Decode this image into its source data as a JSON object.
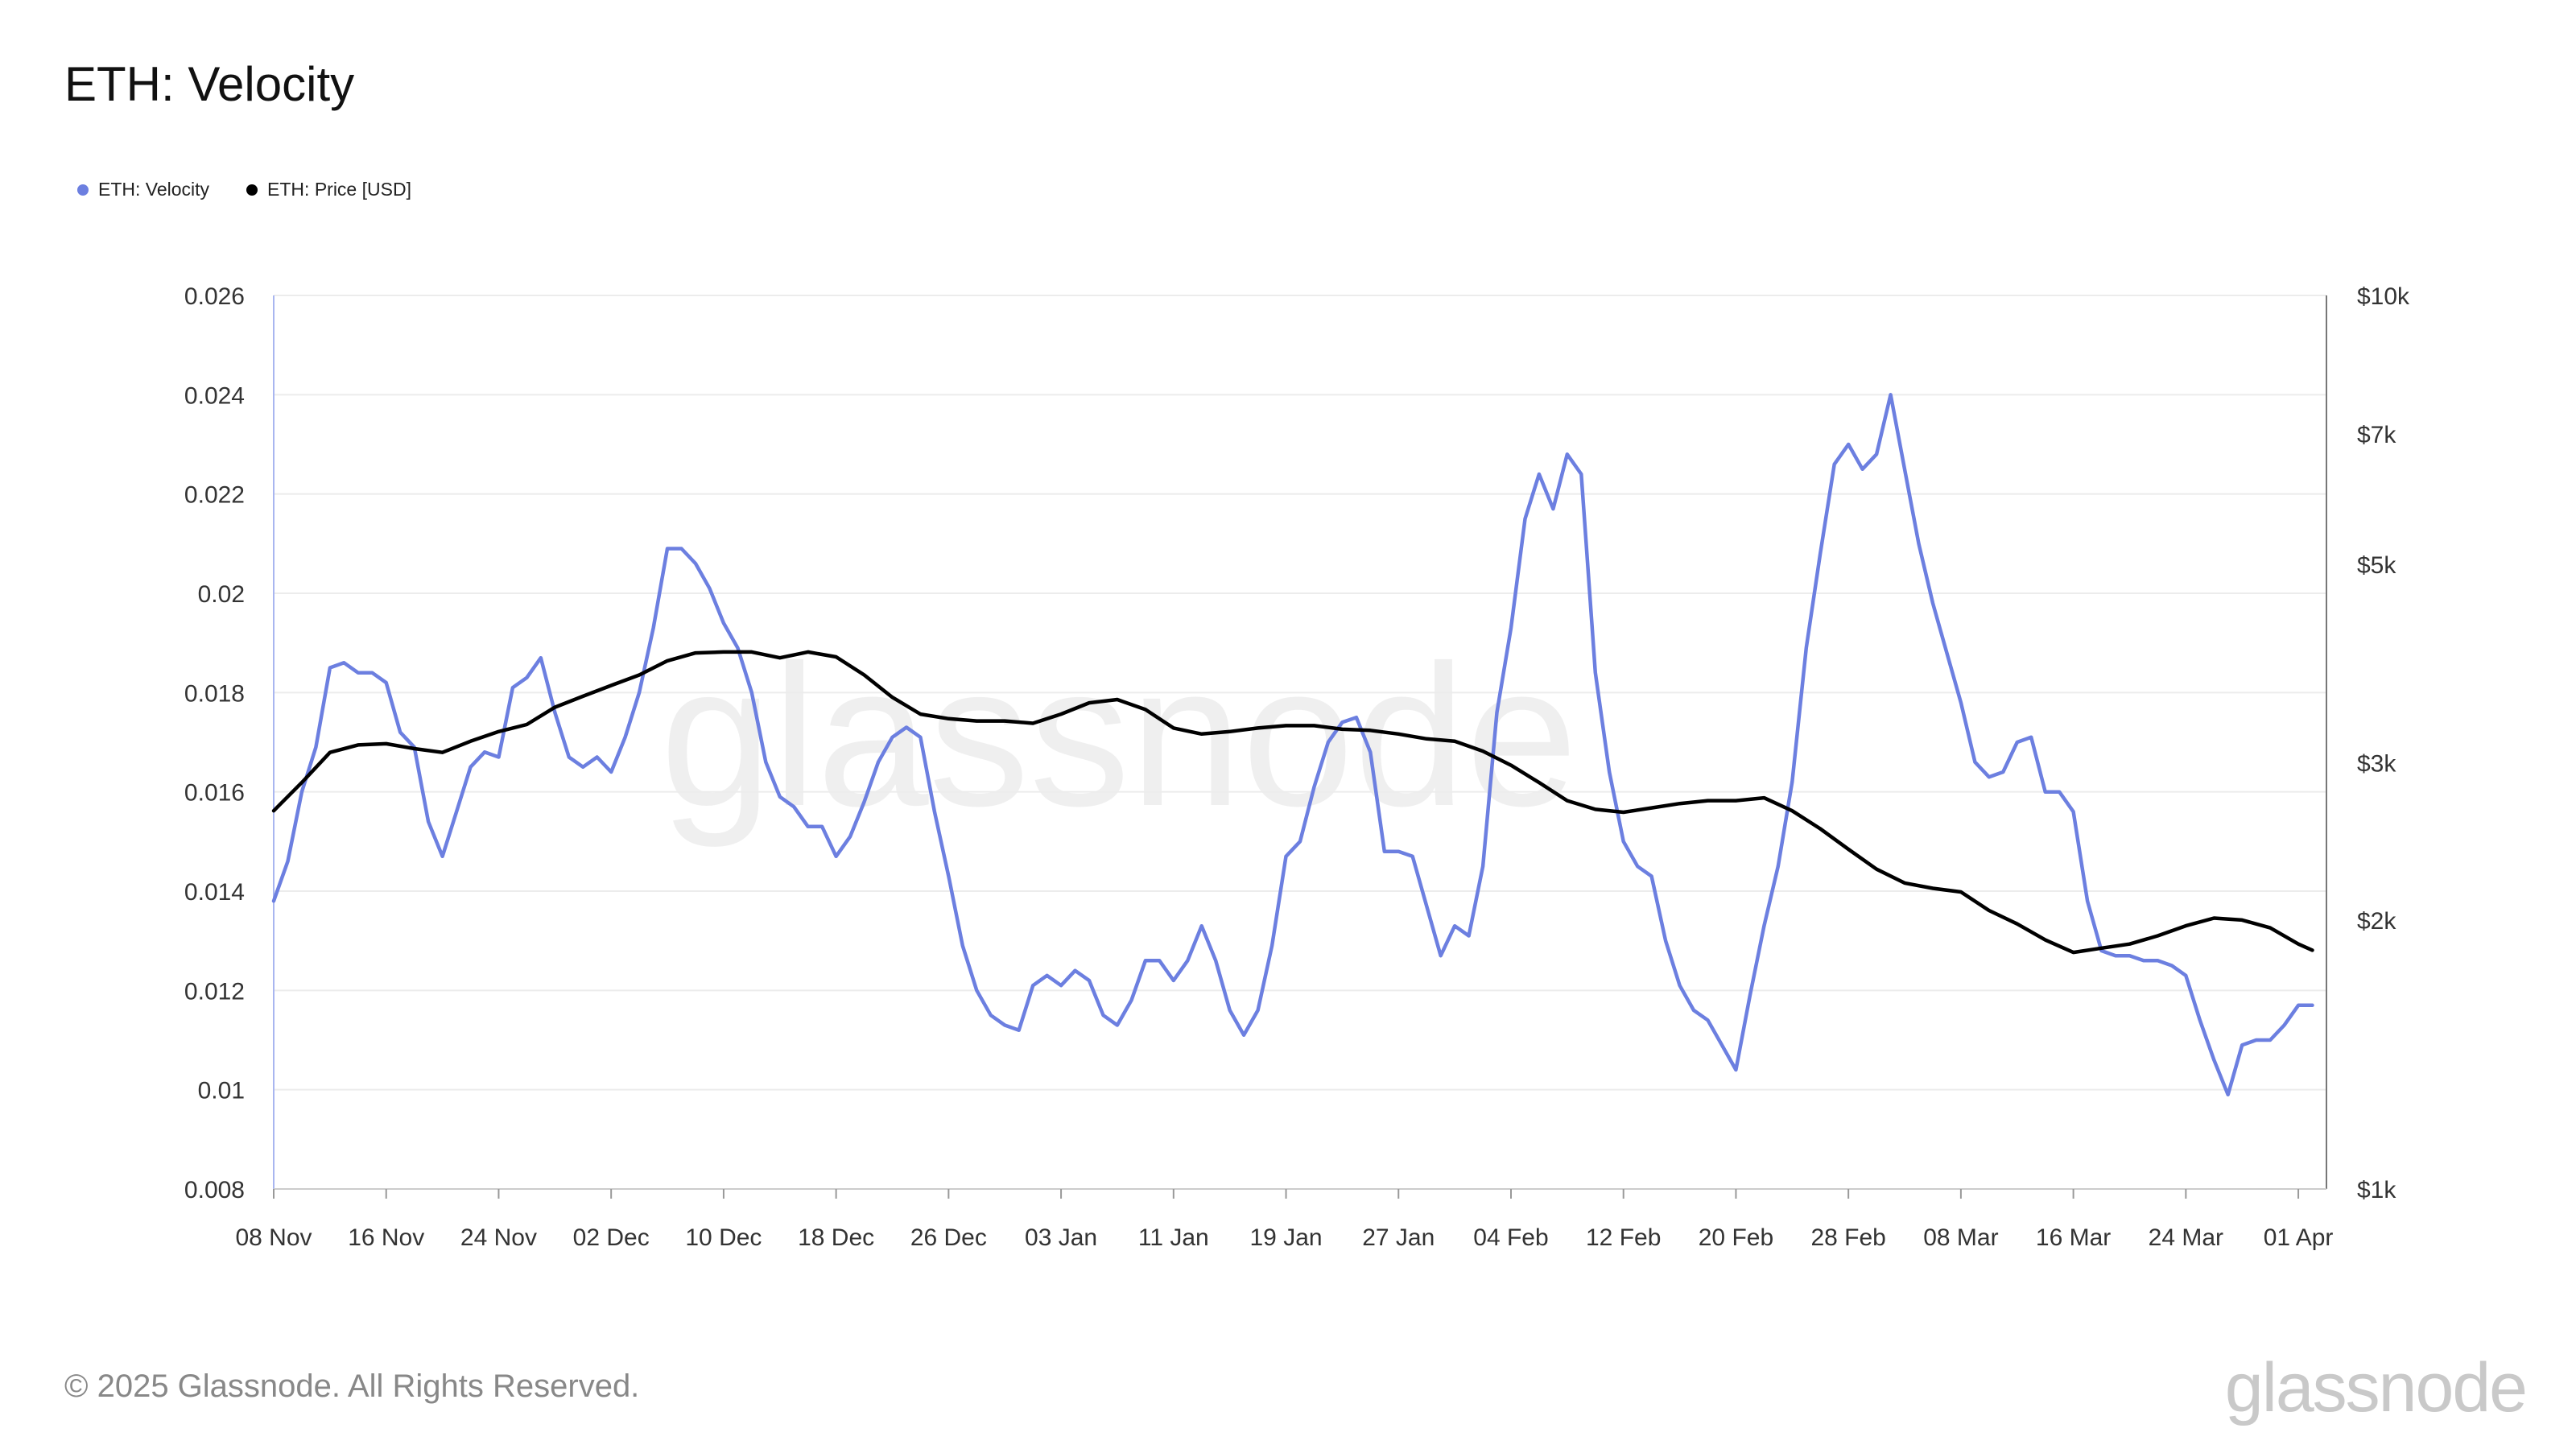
{
  "title": "ETH: Velocity",
  "footer": "© 2025 Glassnode. All Rights Reserved.",
  "brand": "glassnode",
  "watermark": "glassnode",
  "colors": {
    "velocity": "#6c7fe0",
    "price": "#000000",
    "grid": "#ececec",
    "left_axis": "#a9b6f0",
    "right_axis": "#777777"
  },
  "chart_data": {
    "type": "line",
    "title": "ETH: Velocity",
    "x_start": "2024-11-08",
    "x_end": "2025-04-03",
    "x_ticks": [
      {
        "date": "2024-11-08",
        "label": "08 Nov"
      },
      {
        "date": "2024-11-16",
        "label": "16 Nov"
      },
      {
        "date": "2024-11-24",
        "label": "24 Nov"
      },
      {
        "date": "2024-12-02",
        "label": "02 Dec"
      },
      {
        "date": "2024-12-10",
        "label": "10 Dec"
      },
      {
        "date": "2024-12-18",
        "label": "18 Dec"
      },
      {
        "date": "2024-12-26",
        "label": "26 Dec"
      },
      {
        "date": "2025-01-03",
        "label": "03 Jan"
      },
      {
        "date": "2025-01-11",
        "label": "11 Jan"
      },
      {
        "date": "2025-01-19",
        "label": "19 Jan"
      },
      {
        "date": "2025-01-27",
        "label": "27 Jan"
      },
      {
        "date": "2025-02-04",
        "label": "04 Feb"
      },
      {
        "date": "2025-02-12",
        "label": "12 Feb"
      },
      {
        "date": "2025-02-20",
        "label": "20 Feb"
      },
      {
        "date": "2025-02-28",
        "label": "28 Feb"
      },
      {
        "date": "2025-03-08",
        "label": "08 Mar"
      },
      {
        "date": "2025-03-16",
        "label": "16 Mar"
      },
      {
        "date": "2025-03-24",
        "label": "24 Mar"
      },
      {
        "date": "2025-04-01",
        "label": "01 Apr"
      }
    ],
    "y_left": {
      "min": 0.008,
      "max": 0.026,
      "ticks": [
        0.008,
        0.01,
        0.012,
        0.014,
        0.016,
        0.018,
        0.02,
        0.022,
        0.024,
        0.026
      ],
      "tick_labels": [
        "0.008",
        "0.01",
        "0.012",
        "0.014",
        "0.016",
        "0.018",
        "0.02",
        "0.022",
        "0.024",
        "0.026"
      ]
    },
    "y_right": {
      "scale": "log",
      "min": 1000,
      "max": 10000,
      "ticks": [
        1000,
        2000,
        3000,
        5000,
        7000,
        10000
      ],
      "tick_labels": [
        "$1k",
        "$2k",
        "$3k",
        "$5k",
        "$7k",
        "$10k"
      ]
    },
    "grid": true,
    "legend_position": "top-left",
    "series": [
      {
        "name": "ETH: Velocity",
        "axis": "left",
        "points": [
          [
            "2024-11-08",
            0.0138
          ],
          [
            "2024-11-09",
            0.0146
          ],
          [
            "2024-11-10",
            0.016
          ],
          [
            "2024-11-11",
            0.0169
          ],
          [
            "2024-11-12",
            0.0185
          ],
          [
            "2024-11-13",
            0.0186
          ],
          [
            "2024-11-14",
            0.0184
          ],
          [
            "2024-11-15",
            0.0184
          ],
          [
            "2024-11-16",
            0.0182
          ],
          [
            "2024-11-17",
            0.0172
          ],
          [
            "2024-11-18",
            0.0169
          ],
          [
            "2024-11-19",
            0.0154
          ],
          [
            "2024-11-20",
            0.0147
          ],
          [
            "2024-11-21",
            0.0156
          ],
          [
            "2024-11-22",
            0.0165
          ],
          [
            "2024-11-23",
            0.0168
          ],
          [
            "2024-11-24",
            0.0167
          ],
          [
            "2024-11-25",
            0.0181
          ],
          [
            "2024-11-26",
            0.0183
          ],
          [
            "2024-11-27",
            0.0187
          ],
          [
            "2024-11-28",
            0.0176
          ],
          [
            "2024-11-29",
            0.0167
          ],
          [
            "2024-11-30",
            0.0165
          ],
          [
            "2024-12-01",
            0.0167
          ],
          [
            "2024-12-02",
            0.0164
          ],
          [
            "2024-12-03",
            0.0171
          ],
          [
            "2024-12-04",
            0.018
          ],
          [
            "2024-12-05",
            0.0193
          ],
          [
            "2024-12-06",
            0.0209
          ],
          [
            "2024-12-07",
            0.0209
          ],
          [
            "2024-12-08",
            0.0206
          ],
          [
            "2024-12-09",
            0.0201
          ],
          [
            "2024-12-10",
            0.0194
          ],
          [
            "2024-12-11",
            0.0189
          ],
          [
            "2024-12-12",
            0.018
          ],
          [
            "2024-12-13",
            0.0166
          ],
          [
            "2024-12-14",
            0.0159
          ],
          [
            "2024-12-15",
            0.0157
          ],
          [
            "2024-12-16",
            0.0153
          ],
          [
            "2024-12-17",
            0.0153
          ],
          [
            "2024-12-18",
            0.0147
          ],
          [
            "2024-12-19",
            0.0151
          ],
          [
            "2024-12-20",
            0.0158
          ],
          [
            "2024-12-21",
            0.0166
          ],
          [
            "2024-12-22",
            0.0171
          ],
          [
            "2024-12-23",
            0.0173
          ],
          [
            "2024-12-24",
            0.0171
          ],
          [
            "2024-12-25",
            0.0156
          ],
          [
            "2024-12-26",
            0.0143
          ],
          [
            "2024-12-27",
            0.0129
          ],
          [
            "2024-12-28",
            0.012
          ],
          [
            "2024-12-29",
            0.0115
          ],
          [
            "2024-12-30",
            0.0113
          ],
          [
            "2024-12-31",
            0.0112
          ],
          [
            "2025-01-01",
            0.0121
          ],
          [
            "2025-01-02",
            0.0123
          ],
          [
            "2025-01-03",
            0.0121
          ],
          [
            "2025-01-04",
            0.0124
          ],
          [
            "2025-01-05",
            0.0122
          ],
          [
            "2025-01-06",
            0.0115
          ],
          [
            "2025-01-07",
            0.0113
          ],
          [
            "2025-01-08",
            0.0118
          ],
          [
            "2025-01-09",
            0.0126
          ],
          [
            "2025-01-10",
            0.0126
          ],
          [
            "2025-01-11",
            0.0122
          ],
          [
            "2025-01-12",
            0.0126
          ],
          [
            "2025-01-13",
            0.0133
          ],
          [
            "2025-01-14",
            0.0126
          ],
          [
            "2025-01-15",
            0.0116
          ],
          [
            "2025-01-16",
            0.0111
          ],
          [
            "2025-01-17",
            0.0116
          ],
          [
            "2025-01-18",
            0.0129
          ],
          [
            "2025-01-19",
            0.0147
          ],
          [
            "2025-01-20",
            0.015
          ],
          [
            "2025-01-21",
            0.0161
          ],
          [
            "2025-01-22",
            0.017
          ],
          [
            "2025-01-23",
            0.0174
          ],
          [
            "2025-01-24",
            0.0175
          ],
          [
            "2025-01-25",
            0.0168
          ],
          [
            "2025-01-26",
            0.0148
          ],
          [
            "2025-01-27",
            0.0148
          ],
          [
            "2025-01-28",
            0.0147
          ],
          [
            "2025-01-29",
            0.0137
          ],
          [
            "2025-01-30",
            0.0127
          ],
          [
            "2025-01-31",
            0.0133
          ],
          [
            "2025-02-01",
            0.0131
          ],
          [
            "2025-02-02",
            0.0145
          ],
          [
            "2025-02-03",
            0.0176
          ],
          [
            "2025-02-04",
            0.0193
          ],
          [
            "2025-02-05",
            0.0215
          ],
          [
            "2025-02-06",
            0.0224
          ],
          [
            "2025-02-07",
            0.0217
          ],
          [
            "2025-02-08",
            0.0228
          ],
          [
            "2025-02-09",
            0.0224
          ],
          [
            "2025-02-10",
            0.0184
          ],
          [
            "2025-02-11",
            0.0164
          ],
          [
            "2025-02-12",
            0.015
          ],
          [
            "2025-02-13",
            0.0145
          ],
          [
            "2025-02-14",
            0.0143
          ],
          [
            "2025-02-15",
            0.013
          ],
          [
            "2025-02-16",
            0.0121
          ],
          [
            "2025-02-17",
            0.0116
          ],
          [
            "2025-02-18",
            0.0114
          ],
          [
            "2025-02-19",
            0.0109
          ],
          [
            "2025-02-20",
            0.0104
          ],
          [
            "2025-02-21",
            0.0119
          ],
          [
            "2025-02-22",
            0.0133
          ],
          [
            "2025-02-23",
            0.0145
          ],
          [
            "2025-02-24",
            0.0162
          ],
          [
            "2025-02-25",
            0.0189
          ],
          [
            "2025-02-26",
            0.0208
          ],
          [
            "2025-02-27",
            0.0226
          ],
          [
            "2025-02-28",
            0.023
          ],
          [
            "2025-03-01",
            0.0225
          ],
          [
            "2025-03-02",
            0.0228
          ],
          [
            "2025-03-03",
            0.024
          ],
          [
            "2025-03-04",
            0.0225
          ],
          [
            "2025-03-05",
            0.021
          ],
          [
            "2025-03-06",
            0.0198
          ],
          [
            "2025-03-07",
            0.0188
          ],
          [
            "2025-03-08",
            0.0178
          ],
          [
            "2025-03-09",
            0.0166
          ],
          [
            "2025-03-10",
            0.0163
          ],
          [
            "2025-03-11",
            0.0164
          ],
          [
            "2025-03-12",
            0.017
          ],
          [
            "2025-03-13",
            0.0171
          ],
          [
            "2025-03-14",
            0.016
          ],
          [
            "2025-03-15",
            0.016
          ],
          [
            "2025-03-16",
            0.0156
          ],
          [
            "2025-03-17",
            0.0138
          ],
          [
            "2025-03-18",
            0.0128
          ],
          [
            "2025-03-19",
            0.0127
          ],
          [
            "2025-03-20",
            0.0127
          ],
          [
            "2025-03-21",
            0.0126
          ],
          [
            "2025-03-22",
            0.0126
          ],
          [
            "2025-03-23",
            0.0125
          ],
          [
            "2025-03-24",
            0.0123
          ],
          [
            "2025-03-25",
            0.0114
          ],
          [
            "2025-03-26",
            0.0106
          ],
          [
            "2025-03-27",
            0.0099
          ],
          [
            "2025-03-28",
            0.0109
          ],
          [
            "2025-03-29",
            0.011
          ],
          [
            "2025-03-30",
            0.011
          ],
          [
            "2025-03-31",
            0.0113
          ],
          [
            "2025-04-01",
            0.0117
          ],
          [
            "2025-04-02",
            0.0117
          ]
        ]
      },
      {
        "name": "ETH: Price [USD]",
        "axis": "right",
        "points": [
          [
            "2024-11-08",
            2650
          ],
          [
            "2024-11-10",
            2850
          ],
          [
            "2024-11-12",
            3080
          ],
          [
            "2024-11-14",
            3140
          ],
          [
            "2024-11-16",
            3150
          ],
          [
            "2024-11-18",
            3110
          ],
          [
            "2024-11-20",
            3080
          ],
          [
            "2024-11-22",
            3170
          ],
          [
            "2024-11-24",
            3250
          ],
          [
            "2024-11-26",
            3310
          ],
          [
            "2024-11-28",
            3460
          ],
          [
            "2024-11-30",
            3560
          ],
          [
            "2024-12-02",
            3660
          ],
          [
            "2024-12-04",
            3760
          ],
          [
            "2024-12-06",
            3900
          ],
          [
            "2024-12-08",
            3980
          ],
          [
            "2024-12-10",
            3990
          ],
          [
            "2024-12-12",
            3990
          ],
          [
            "2024-12-14",
            3930
          ],
          [
            "2024-12-16",
            3990
          ],
          [
            "2024-12-18",
            3940
          ],
          [
            "2024-12-20",
            3760
          ],
          [
            "2024-12-22",
            3550
          ],
          [
            "2024-12-24",
            3400
          ],
          [
            "2024-12-26",
            3360
          ],
          [
            "2024-12-28",
            3340
          ],
          [
            "2024-12-30",
            3340
          ],
          [
            "2025-01-01",
            3320
          ],
          [
            "2025-01-03",
            3400
          ],
          [
            "2025-01-05",
            3500
          ],
          [
            "2025-01-07",
            3530
          ],
          [
            "2025-01-09",
            3440
          ],
          [
            "2025-01-11",
            3280
          ],
          [
            "2025-01-13",
            3230
          ],
          [
            "2025-01-15",
            3250
          ],
          [
            "2025-01-17",
            3280
          ],
          [
            "2025-01-19",
            3300
          ],
          [
            "2025-01-21",
            3300
          ],
          [
            "2025-01-23",
            3270
          ],
          [
            "2025-01-25",
            3260
          ],
          [
            "2025-01-27",
            3230
          ],
          [
            "2025-01-29",
            3190
          ],
          [
            "2025-01-31",
            3170
          ],
          [
            "2025-02-02",
            3090
          ],
          [
            "2025-02-04",
            2980
          ],
          [
            "2025-02-06",
            2850
          ],
          [
            "2025-02-08",
            2720
          ],
          [
            "2025-02-10",
            2660
          ],
          [
            "2025-02-12",
            2640
          ],
          [
            "2025-02-14",
            2670
          ],
          [
            "2025-02-16",
            2700
          ],
          [
            "2025-02-18",
            2720
          ],
          [
            "2025-02-20",
            2720
          ],
          [
            "2025-02-22",
            2740
          ],
          [
            "2025-02-24",
            2650
          ],
          [
            "2025-02-26",
            2530
          ],
          [
            "2025-02-28",
            2400
          ],
          [
            "2025-03-02",
            2280
          ],
          [
            "2025-03-04",
            2200
          ],
          [
            "2025-03-06",
            2170
          ],
          [
            "2025-03-08",
            2150
          ],
          [
            "2025-03-10",
            2050
          ],
          [
            "2025-03-12",
            1980
          ],
          [
            "2025-03-14",
            1900
          ],
          [
            "2025-03-16",
            1840
          ],
          [
            "2025-03-18",
            1860
          ],
          [
            "2025-03-20",
            1880
          ],
          [
            "2025-03-22",
            1920
          ],
          [
            "2025-03-24",
            1970
          ],
          [
            "2025-03-26",
            2010
          ],
          [
            "2025-03-28",
            2000
          ],
          [
            "2025-03-30",
            1960
          ],
          [
            "2025-04-01",
            1880
          ],
          [
            "2025-04-02",
            1850
          ]
        ]
      }
    ]
  }
}
